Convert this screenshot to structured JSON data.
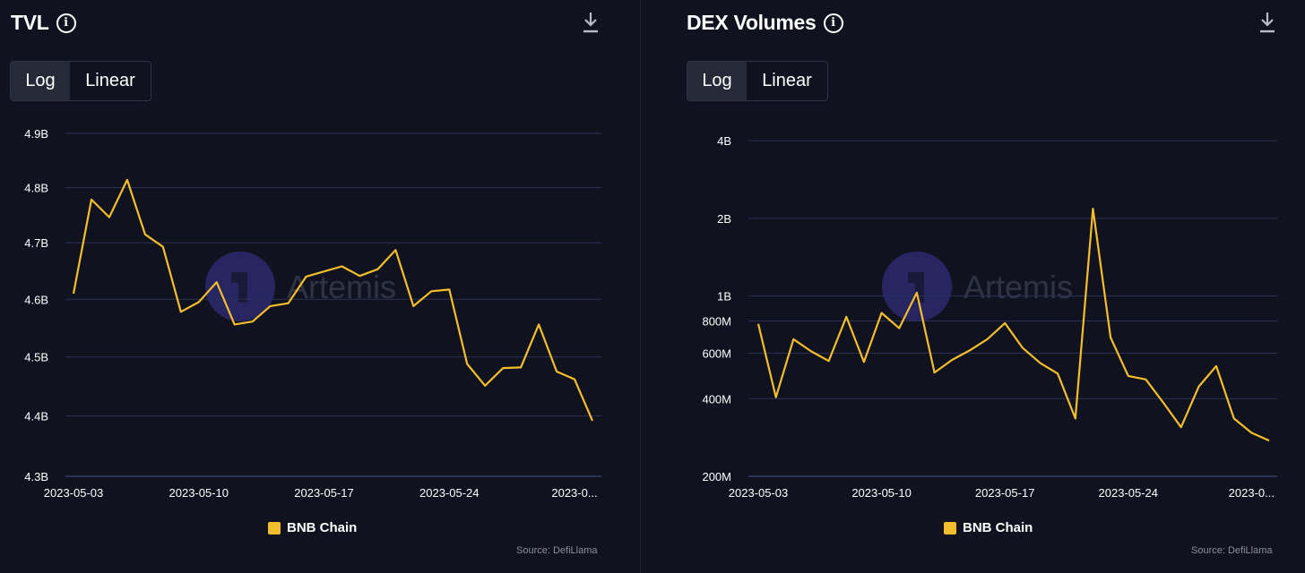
{
  "colors": {
    "background": "#10131f",
    "grid": "#2b3058",
    "series": "#f3be2c",
    "watermark": "#3b3599"
  },
  "watermark": "Artemis",
  "charts": [
    {
      "title": "TVL",
      "info_icon": "info-icon",
      "download_icon": "download-icon",
      "scale_toggle": {
        "options": [
          "Log",
          "Linear"
        ],
        "selected": "Log"
      },
      "legend_label": "BNB Chain",
      "source": "Source: DefiLlama"
    },
    {
      "title": "DEX Volumes",
      "info_icon": "info-icon",
      "download_icon": "download-icon",
      "scale_toggle": {
        "options": [
          "Log",
          "Linear"
        ],
        "selected": "Log"
      },
      "legend_label": "BNB Chain",
      "source": "Source: DefiLlama"
    }
  ],
  "chart_data": [
    {
      "type": "line",
      "title": "TVL",
      "scale": "log",
      "ylim": [
        4300000000.0,
        4900000000.0
      ],
      "y_ticks": [
        {
          "value": 4300000000.0,
          "label": "4.3B"
        },
        {
          "value": 4400000000.0,
          "label": "4.4B"
        },
        {
          "value": 4500000000.0,
          "label": "4.5B"
        },
        {
          "value": 4600000000.0,
          "label": "4.6B"
        },
        {
          "value": 4700000000.0,
          "label": "4.7B"
        },
        {
          "value": 4800000000.0,
          "label": "4.8B"
        },
        {
          "value": 4900000000.0,
          "label": "4.9B"
        }
      ],
      "x_day_range": [
        0,
        29
      ],
      "x_ticks": [
        {
          "day": 0,
          "label": "2023-05-03"
        },
        {
          "day": 7,
          "label": "2023-05-10"
        },
        {
          "day": 14,
          "label": "2023-05-17"
        },
        {
          "day": 21,
          "label": "2023-05-24"
        },
        {
          "day": 28,
          "label": "2023-0..."
        }
      ],
      "series": [
        {
          "name": "BNB Chain",
          "x": [
            0,
            1,
            2,
            3,
            4,
            5,
            6,
            7,
            8,
            9,
            10,
            11,
            12,
            13,
            14,
            15,
            16,
            17,
            18,
            19,
            20,
            21,
            22,
            23,
            24,
            25,
            26,
            27,
            28,
            29
          ],
          "values": [
            4610000000.0,
            4778000000.0,
            4746000000.0,
            4814000000.0,
            4715000000.0,
            4693000000.0,
            4578000000.0,
            4595000000.0,
            4630000000.0,
            4556000000.0,
            4561000000.0,
            4588000000.0,
            4593000000.0,
            4640000000.0,
            4649000000.0,
            4658000000.0,
            4641000000.0,
            4653000000.0,
            4687000000.0,
            4588000000.0,
            4614000000.0,
            4617000000.0,
            4488000000.0,
            4451000000.0,
            4481000000.0,
            4482000000.0,
            4556000000.0,
            4475000000.0,
            4462000000.0,
            4392000000.0
          ]
        }
      ]
    },
    {
      "type": "line",
      "title": "DEX Volumes",
      "scale": "log",
      "ylim": [
        200000000.0,
        4200000000.0
      ],
      "y_ticks": [
        {
          "value": 200000000.0,
          "label": "200M"
        },
        {
          "value": 400000000.0,
          "label": "400M"
        },
        {
          "value": 600000000.0,
          "label": "600M"
        },
        {
          "value": 800000000.0,
          "label": "800M"
        },
        {
          "value": 1000000000.0,
          "label": "1B"
        },
        {
          "value": 2000000000.0,
          "label": "2B"
        },
        {
          "value": 4000000000.0,
          "label": "4B"
        }
      ],
      "x_day_range": [
        0,
        29
      ],
      "x_ticks": [
        {
          "day": 0,
          "label": "2023-05-03"
        },
        {
          "day": 7,
          "label": "2023-05-10"
        },
        {
          "day": 14,
          "label": "2023-05-17"
        },
        {
          "day": 21,
          "label": "2023-05-24"
        },
        {
          "day": 28,
          "label": "2023-0..."
        }
      ],
      "series": [
        {
          "name": "BNB Chain",
          "x": [
            0,
            1,
            2,
            3,
            4,
            5,
            6,
            7,
            8,
            9,
            10,
            11,
            12,
            13,
            14,
            15,
            16,
            17,
            18,
            19,
            20,
            21,
            22,
            23,
            24,
            25,
            26,
            27,
            28,
            29
          ],
          "values": [
            780000000.0,
            405000000.0,
            680000000.0,
            610000000.0,
            560000000.0,
            830000000.0,
            555000000.0,
            860000000.0,
            750000000.0,
            1030000000.0,
            505000000.0,
            565000000.0,
            615000000.0,
            680000000.0,
            785000000.0,
            630000000.0,
            550000000.0,
            500000000.0,
            335000000.0,
            2180000000.0,
            690000000.0,
            490000000.0,
            475000000.0,
            385000000.0,
            310000000.0,
            445000000.0,
            535000000.0,
            335000000.0,
            295000000.0,
            275000000.0
          ]
        }
      ]
    }
  ]
}
